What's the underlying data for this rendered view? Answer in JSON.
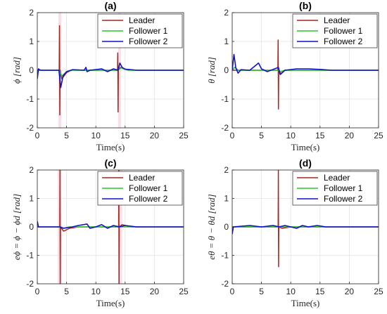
{
  "chart_data": [
    {
      "type": "line",
      "title": "(a)",
      "xlabel": "Time(s)",
      "ylabel": "ϕ [rad]",
      "xlim": [
        0,
        25
      ],
      "ylim": [
        -2,
        2
      ],
      "xticks": [
        0,
        5,
        10,
        15,
        20,
        25
      ],
      "yticks": [
        -2,
        -1,
        0,
        1,
        2
      ],
      "grid": true,
      "legend_position": "top-right",
      "highlights": [
        [
          3.6,
          4.1
        ],
        [
          13.8,
          14.3
        ]
      ],
      "series": [
        {
          "name": "Leader",
          "color": "#A0281E",
          "points": [
            [
              0,
              0
            ],
            [
              3.4,
              0
            ],
            [
              3.75,
              0
            ],
            [
              3.8,
              1.55
            ],
            [
              3.85,
              -1.55
            ],
            [
              3.9,
              0
            ],
            [
              4.2,
              -0.3
            ],
            [
              5,
              -0.08
            ],
            [
              6,
              0.02
            ],
            [
              8,
              0
            ],
            [
              13.7,
              0
            ],
            [
              13.75,
              0.6
            ],
            [
              13.8,
              -1.45
            ],
            [
              13.85,
              0
            ],
            [
              14.2,
              0.1
            ],
            [
              15,
              0.03
            ],
            [
              17,
              0
            ],
            [
              25,
              0
            ]
          ]
        },
        {
          "name": "Follower 1",
          "color": "#22CC22",
          "points": [
            [
              0,
              0
            ],
            [
              3.7,
              0
            ],
            [
              4.2,
              -0.2
            ],
            [
              5,
              -0.05
            ],
            [
              6,
              0
            ],
            [
              13.8,
              0
            ],
            [
              14.3,
              0.08
            ],
            [
              15.5,
              0
            ],
            [
              25,
              0
            ]
          ]
        },
        {
          "name": "Follower 2",
          "color": "#1010D0",
          "points": [
            [
              0,
              -0.3
            ],
            [
              0.2,
              0.05
            ],
            [
              0.5,
              0
            ],
            [
              3.7,
              0
            ],
            [
              4.0,
              -0.6
            ],
            [
              4.4,
              -0.2
            ],
            [
              5,
              -0.05
            ],
            [
              6,
              0.02
            ],
            [
              8,
              0
            ],
            [
              8.3,
              0.1
            ],
            [
              8.5,
              -0.05
            ],
            [
              9,
              0
            ],
            [
              11,
              0.05
            ],
            [
              12,
              -0.05
            ],
            [
              13,
              0.05
            ],
            [
              13.8,
              0
            ],
            [
              14.1,
              0.25
            ],
            [
              14.5,
              0.1
            ],
            [
              15,
              0.04
            ],
            [
              17,
              0
            ],
            [
              20,
              0
            ],
            [
              25,
              0
            ]
          ]
        }
      ]
    },
    {
      "type": "line",
      "title": "(b)",
      "xlabel": "Time(s)",
      "ylabel": "θ [rad]",
      "xlim": [
        0,
        25
      ],
      "ylim": [
        -2,
        2
      ],
      "xticks": [
        0,
        5,
        10,
        15,
        20,
        25
      ],
      "yticks": [
        -2,
        -1,
        0,
        1,
        2
      ],
      "grid": true,
      "legend_position": "top-right",
      "highlights": [],
      "series": [
        {
          "name": "Leader",
          "color": "#A0281E",
          "points": [
            [
              0,
              0
            ],
            [
              7.8,
              0
            ],
            [
              7.85,
              1.05
            ],
            [
              7.9,
              -1.35
            ],
            [
              7.95,
              0
            ],
            [
              8.3,
              -0.12
            ],
            [
              9,
              0
            ],
            [
              25,
              0
            ]
          ]
        },
        {
          "name": "Follower 1",
          "color": "#22CC22",
          "points": [
            [
              0,
              0
            ],
            [
              0.4,
              0.1
            ],
            [
              1,
              0
            ],
            [
              7.9,
              0
            ],
            [
              8.3,
              -0.05
            ],
            [
              9,
              0
            ],
            [
              25,
              0
            ]
          ]
        },
        {
          "name": "Follower 2",
          "color": "#1010D0",
          "points": [
            [
              0,
              0
            ],
            [
              0.3,
              0.55
            ],
            [
              0.6,
              0.1
            ],
            [
              1,
              -0.1
            ],
            [
              1.5,
              0.02
            ],
            [
              3,
              0
            ],
            [
              4.5,
              0.25
            ],
            [
              5,
              0.05
            ],
            [
              6,
              -0.05
            ],
            [
              7.9,
              0.1
            ],
            [
              8.2,
              -0.15
            ],
            [
              9,
              0
            ],
            [
              11,
              0.05
            ],
            [
              13,
              0.05
            ],
            [
              15,
              0.03
            ],
            [
              17,
              0
            ],
            [
              25,
              0
            ]
          ]
        }
      ]
    },
    {
      "type": "line",
      "title": "(c)",
      "xlabel": "Time(s)",
      "ylabel": "eϕ = ϕ − ϕd [rad]",
      "xlim": [
        0,
        25
      ],
      "ylim": [
        -2,
        2
      ],
      "xticks": [
        0,
        5,
        10,
        15,
        20,
        25
      ],
      "yticks": [
        -2,
        -1,
        0,
        1,
        2
      ],
      "grid": true,
      "legend_position": "top-right",
      "highlights": [
        [
          3.5,
          4.2
        ],
        [
          13.8,
          14.5
        ]
      ],
      "series": [
        {
          "name": "Leader",
          "color": "#A0281E",
          "points": [
            [
              0,
              0
            ],
            [
              3.85,
              0
            ],
            [
              3.88,
              2
            ],
            [
              3.92,
              -2
            ],
            [
              3.96,
              0
            ],
            [
              4.5,
              -0.15
            ],
            [
              5.5,
              -0.05
            ],
            [
              7,
              0
            ],
            [
              13.9,
              0
            ],
            [
              13.93,
              2
            ],
            [
              13.97,
              -2
            ],
            [
              14.0,
              0
            ],
            [
              14.5,
              0.08
            ],
            [
              16,
              0
            ],
            [
              25,
              0
            ]
          ]
        },
        {
          "name": "Follower 1",
          "color": "#22CC22",
          "points": [
            [
              0,
              0
            ],
            [
              3.9,
              0
            ],
            [
              4.4,
              -0.05
            ],
            [
              5.5,
              0
            ],
            [
              25,
              0
            ]
          ]
        },
        {
          "name": "Follower 2",
          "color": "#1010D0",
          "points": [
            [
              0,
              0.2
            ],
            [
              0.2,
              0
            ],
            [
              3.9,
              0
            ],
            [
              4.5,
              -0.05
            ],
            [
              6,
              0
            ],
            [
              7,
              0.05
            ],
            [
              8.5,
              0.1
            ],
            [
              9,
              -0.05
            ],
            [
              10,
              0
            ],
            [
              11,
              0.08
            ],
            [
              12,
              -0.05
            ],
            [
              13,
              0.05
            ],
            [
              14,
              0
            ],
            [
              15,
              0.05
            ],
            [
              17,
              0
            ],
            [
              25,
              0
            ]
          ]
        }
      ]
    },
    {
      "type": "line",
      "title": "(d)",
      "xlabel": "Time(s)",
      "ylabel": "eθ = θ − θd [rad]",
      "xlim": [
        0,
        25
      ],
      "ylim": [
        -2,
        2
      ],
      "xticks": [
        0,
        5,
        10,
        15,
        20,
        25
      ],
      "yticks": [
        -2,
        -1,
        0,
        1,
        2
      ],
      "grid": true,
      "legend_position": "top-right",
      "highlights": [],
      "series": [
        {
          "name": "Leader",
          "color": "#A0281E",
          "points": [
            [
              0,
              0
            ],
            [
              7.85,
              0
            ],
            [
              7.88,
              2
            ],
            [
              7.92,
              -1.4
            ],
            [
              7.96,
              0
            ],
            [
              8.5,
              -0.05
            ],
            [
              10,
              0
            ],
            [
              25,
              0
            ]
          ]
        },
        {
          "name": "Follower 1",
          "color": "#22CC22",
          "points": [
            [
              0,
              0
            ],
            [
              25,
              0
            ]
          ]
        },
        {
          "name": "Follower 2",
          "color": "#1010D0",
          "points": [
            [
              0,
              -0.25
            ],
            [
              0.2,
              0
            ],
            [
              3,
              0.05
            ],
            [
              5,
              0
            ],
            [
              7,
              0.05
            ],
            [
              8,
              0
            ],
            [
              9,
              0.05
            ],
            [
              11,
              -0.05
            ],
            [
              12,
              0.05
            ],
            [
              13,
              0
            ],
            [
              14.5,
              0.05
            ],
            [
              16,
              0
            ],
            [
              25,
              0
            ]
          ]
        }
      ]
    }
  ]
}
